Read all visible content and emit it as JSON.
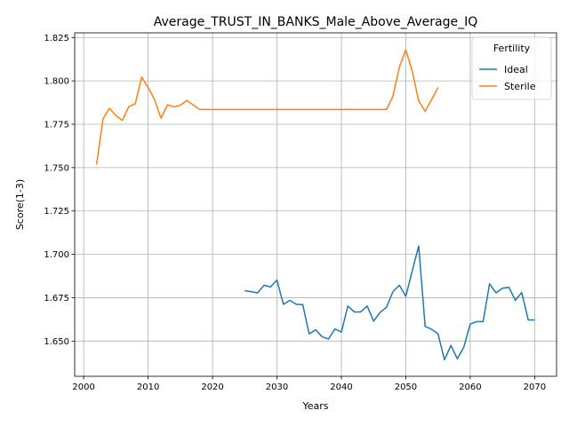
{
  "chart_data": {
    "type": "line",
    "title": "Average_TRUST_IN_BANKS_Male_Above_Average_IQ",
    "xlabel": "Years",
    "ylabel": "Score(1-3)",
    "xlim": [
      1998.6,
      2073.4
    ],
    "ylim": [
      1.6297,
      1.8277
    ],
    "xticks": [
      2000,
      2010,
      2020,
      2030,
      2040,
      2050,
      2060,
      2070
    ],
    "yticks": [
      1.65,
      1.675,
      1.7,
      1.725,
      1.75,
      1.775,
      1.8,
      1.825
    ],
    "grid": true,
    "legend": {
      "title": "Fertility",
      "placement": "upper-right"
    },
    "series": [
      {
        "name": "Ideal",
        "color": "#1f77b4",
        "x": [
          2025,
          2026,
          2027,
          2028,
          2029,
          2030,
          2031,
          2032,
          2033,
          2034,
          2035,
          2036,
          2037,
          2038,
          2039,
          2040,
          2041,
          2042,
          2043,
          2044,
          2045,
          2046,
          2047,
          2048,
          2049,
          2050,
          2051,
          2052,
          2053,
          2054,
          2055,
          2056,
          2057,
          2058,
          2059,
          2060,
          2061,
          2062,
          2063,
          2064,
          2065,
          2066,
          2067,
          2068,
          2069,
          2070
        ],
        "y": [
          1.679,
          1.6785,
          1.6778,
          1.6822,
          1.6812,
          1.6852,
          1.6712,
          1.6735,
          1.6712,
          1.671,
          1.6542,
          1.6565,
          1.6525,
          1.6512,
          1.657,
          1.6552,
          1.6702,
          1.6668,
          1.6668,
          1.6702,
          1.6615,
          1.6665,
          1.6695,
          1.6785,
          1.6822,
          1.6758,
          1.6905,
          1.7048,
          1.6585,
          1.6568,
          1.6542,
          1.6392,
          1.6475,
          1.6398,
          1.6465,
          1.6598,
          1.6612,
          1.6612,
          1.683,
          1.6778,
          1.6805,
          1.681,
          1.6735,
          1.678,
          1.6622,
          1.6622
        ]
      },
      {
        "name": "Sterile",
        "color": "#ff7f0e",
        "x": [
          2002,
          2003,
          2004,
          2005,
          2006,
          2007,
          2008,
          2009,
          2010,
          2011,
          2012,
          2013,
          2014,
          2015,
          2016,
          2017,
          2018,
          2019,
          2020,
          2021,
          2022,
          2023,
          2024,
          2025,
          2026,
          2027,
          2028,
          2029,
          2030,
          2031,
          2032,
          2033,
          2034,
          2035,
          2036,
          2037,
          2038,
          2039,
          2040,
          2041,
          2042,
          2043,
          2044,
          2045,
          2046,
          2047,
          2048,
          2049,
          2050,
          2051,
          2052,
          2053,
          2054,
          2055
        ],
        "y": [
          1.7518,
          1.7782,
          1.7842,
          1.78,
          1.7772,
          1.7852,
          1.7868,
          1.8022,
          1.7962,
          1.7892,
          1.7785,
          1.7862,
          1.785,
          1.786,
          1.7887,
          1.7862,
          1.7835,
          1.7835,
          1.7835,
          1.7835,
          1.7835,
          1.7835,
          1.7835,
          1.7835,
          1.7835,
          1.7835,
          1.7835,
          1.7835,
          1.7835,
          1.7835,
          1.7835,
          1.7835,
          1.7835,
          1.7835,
          1.7835,
          1.7835,
          1.7835,
          1.7835,
          1.7835,
          1.7835,
          1.7835,
          1.7835,
          1.7835,
          1.7835,
          1.7835,
          1.7835,
          1.7912,
          1.808,
          1.818,
          1.8055,
          1.7885,
          1.7825,
          1.7892,
          1.7962
        ]
      }
    ]
  }
}
